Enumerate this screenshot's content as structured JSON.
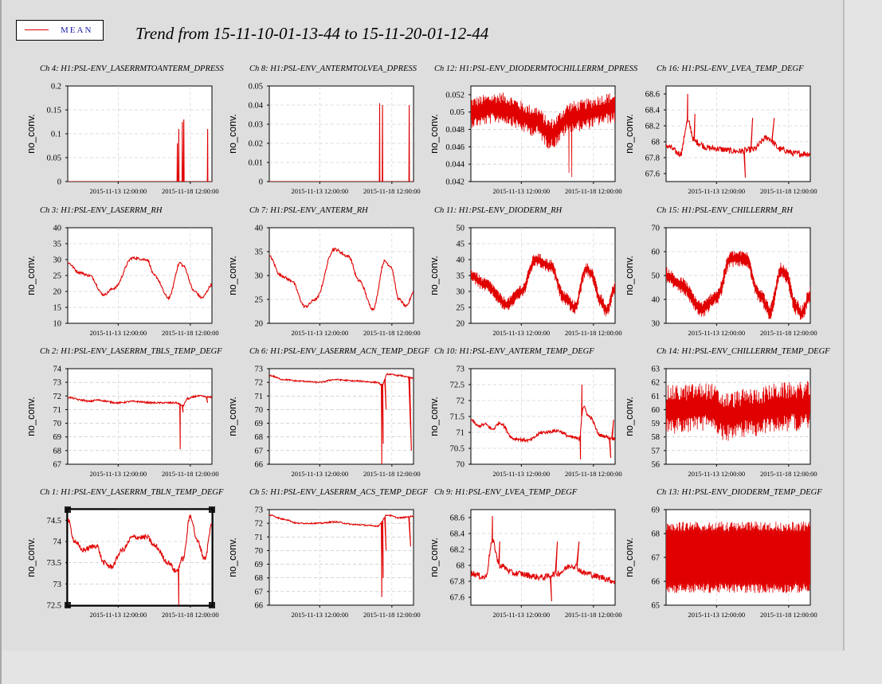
{
  "title": "Trend from 15-11-10-01-13-44 to 15-11-20-01-12-44",
  "legend": {
    "label": "MEAN",
    "color": "#e00000"
  },
  "series_color": "#e00000",
  "chart_data": [
    {
      "title": "Ch 4: H1:PSL-ENV_LASERRMTOANTERM_DPRESS",
      "type": "line",
      "ylabel": "no_conv.",
      "ylim": [
        0,
        0.2
      ],
      "yticks": [
        "0",
        "0.05",
        "0.1",
        "0.15",
        "0.2"
      ],
      "xticks": [
        "2015-11-13 12:00:00",
        "2015-11-18 12:00:00"
      ],
      "pattern": "spikes",
      "base": 0,
      "noise": 0,
      "spikes": [
        [
          0.76,
          0.08
        ],
        [
          0.77,
          0.11
        ],
        [
          0.795,
          0.125
        ],
        [
          0.805,
          0.13
        ],
        [
          0.97,
          0.11
        ]
      ]
    },
    {
      "title": "Ch 8: H1:PSL-ENV_ANTERMTOLVEA_DPRESS",
      "type": "line",
      "ylabel": "no_conv.",
      "ylim": [
        0,
        0.05
      ],
      "yticks": [
        "0",
        "0.01",
        "0.02",
        "0.03",
        "0.04",
        "0.05"
      ],
      "xticks": [
        "2015-11-13 12:00:00",
        "2015-11-18 12:00:00"
      ],
      "pattern": "spikes",
      "base": 0,
      "noise": 0,
      "spikes": [
        [
          0.765,
          0.041
        ],
        [
          0.785,
          0.04
        ],
        [
          0.97,
          0.04
        ]
      ]
    },
    {
      "title": "Ch 12: H1:PSL-ENV_DIODERMTOCHILLERRM_DPRESS",
      "type": "line",
      "ylabel": "no_conv.",
      "ylim": [
        0.042,
        0.053
      ],
      "yticks": [
        "0.042",
        "0.044",
        "0.046",
        "0.048",
        "0.05",
        "0.052"
      ],
      "xticks": [
        "2015-11-13 12:00:00",
        "2015-11-18 12:00:00"
      ],
      "pattern": "noisy",
      "keys": [
        [
          0,
          0.05
        ],
        [
          0.2,
          0.0505
        ],
        [
          0.45,
          0.049
        ],
        [
          0.55,
          0.0475
        ],
        [
          0.7,
          0.0495
        ],
        [
          1,
          0.0505
        ]
      ],
      "noise": 0.0018,
      "spikes": [
        [
          0.7,
          0.0425
        ],
        [
          0.68,
          0.043
        ]
      ]
    },
    {
      "title": "Ch 16: H1:PSL-ENV_LVEA_TEMP_DEGF",
      "type": "line",
      "ylabel": "no_conv.",
      "ylim": [
        67.5,
        68.7
      ],
      "yticks": [
        "67.6",
        "67.8",
        "68",
        "68.2",
        "68.4",
        "68.6"
      ],
      "xticks": [
        "2015-11-13 12:00:00",
        "2015-11-18 12:00:00"
      ],
      "pattern": "wiggly",
      "keys": [
        [
          0,
          67.95
        ],
        [
          0.1,
          67.85
        ],
        [
          0.15,
          68.25
        ],
        [
          0.2,
          68.0
        ],
        [
          0.3,
          67.92
        ],
        [
          0.5,
          67.88
        ],
        [
          0.6,
          67.9
        ],
        [
          0.7,
          68.05
        ],
        [
          0.8,
          67.9
        ],
        [
          0.9,
          67.85
        ],
        [
          1,
          67.85
        ]
      ],
      "noise": 0.04,
      "spikes": [
        [
          0.15,
          68.6
        ],
        [
          0.2,
          68.35
        ],
        [
          0.55,
          67.55
        ],
        [
          0.6,
          68.3
        ],
        [
          0.75,
          68.3
        ]
      ]
    },
    {
      "title": "Ch 3: H1:PSL-ENV_LASERRM_RH",
      "type": "line",
      "ylabel": "no_conv.",
      "ylim": [
        10,
        40
      ],
      "yticks": [
        "10",
        "15",
        "20",
        "25",
        "30",
        "35",
        "40"
      ],
      "xticks": [
        "2015-11-13 12:00:00",
        "2015-11-18 12:00:00"
      ],
      "pattern": "smooth",
      "keys": [
        [
          0,
          29
        ],
        [
          0.08,
          26
        ],
        [
          0.15,
          25
        ],
        [
          0.25,
          19
        ],
        [
          0.32,
          21
        ],
        [
          0.45,
          30.5
        ],
        [
          0.55,
          30
        ],
        [
          0.6,
          25
        ],
        [
          0.7,
          18
        ],
        [
          0.78,
          29
        ],
        [
          0.8,
          28
        ],
        [
          0.88,
          20
        ],
        [
          0.93,
          18
        ],
        [
          1,
          22
        ]
      ],
      "noise": 0.4,
      "spikes": []
    },
    {
      "title": "Ch 7: H1:PSL-ENV_ANTERM_RH",
      "type": "line",
      "ylabel": "no_conv.",
      "ylim": [
        20,
        40
      ],
      "yticks": [
        "20",
        "25",
        "30",
        "35",
        "40"
      ],
      "xticks": [
        "2015-11-13 12:00:00",
        "2015-11-18 12:00:00"
      ],
      "pattern": "smooth",
      "keys": [
        [
          0,
          34
        ],
        [
          0.08,
          30
        ],
        [
          0.15,
          29
        ],
        [
          0.25,
          23.5
        ],
        [
          0.32,
          25
        ],
        [
          0.45,
          35.5
        ],
        [
          0.55,
          34
        ],
        [
          0.62,
          29
        ],
        [
          0.72,
          23
        ],
        [
          0.8,
          33
        ],
        [
          0.84,
          32
        ],
        [
          0.9,
          25
        ],
        [
          0.95,
          23.5
        ],
        [
          1,
          26.5
        ]
      ],
      "noise": 0.3,
      "spikes": []
    },
    {
      "title": "Ch 11: H1:PSL-ENV_DIODERM_RH",
      "type": "line",
      "ylabel": "no_conv.",
      "ylim": [
        20,
        50
      ],
      "yticks": [
        "20",
        "25",
        "30",
        "35",
        "40",
        "45",
        "50"
      ],
      "xticks": [
        "2015-11-13 12:00:00",
        "2015-11-18 12:00:00"
      ],
      "pattern": "noisy",
      "keys": [
        [
          0,
          35
        ],
        [
          0.1,
          32
        ],
        [
          0.25,
          26
        ],
        [
          0.35,
          30
        ],
        [
          0.45,
          40
        ],
        [
          0.55,
          38
        ],
        [
          0.65,
          28
        ],
        [
          0.72,
          25
        ],
        [
          0.8,
          37
        ],
        [
          0.83,
          36
        ],
        [
          0.9,
          27
        ],
        [
          0.94,
          24
        ],
        [
          1,
          31
        ]
      ],
      "noise": 2.2,
      "spikes": []
    },
    {
      "title": "Ch 15: H1:PSL-ENV_CHILLERRM_RH",
      "type": "line",
      "ylabel": "no_conv.",
      "ylim": [
        30,
        70
      ],
      "yticks": [
        "30",
        "40",
        "50",
        "60",
        "70"
      ],
      "xticks": [
        "2015-11-13 12:00:00",
        "2015-11-18 12:00:00"
      ],
      "pattern": "noisy",
      "keys": [
        [
          0,
          50
        ],
        [
          0.1,
          46
        ],
        [
          0.25,
          36
        ],
        [
          0.35,
          41
        ],
        [
          0.45,
          57
        ],
        [
          0.55,
          57
        ],
        [
          0.65,
          42
        ],
        [
          0.72,
          35
        ],
        [
          0.8,
          52
        ],
        [
          0.83,
          50
        ],
        [
          0.9,
          37
        ],
        [
          0.94,
          34
        ],
        [
          1,
          42
        ]
      ],
      "noise": 3.5,
      "spikes": []
    },
    {
      "title": "Ch 2: H1:PSL-ENV_LASERRM_TBLS_TEMP_DEGF",
      "type": "line",
      "ylabel": "no_conv.",
      "ylim": [
        67,
        74
      ],
      "yticks": [
        "67",
        "68",
        "69",
        "70",
        "71",
        "72",
        "73",
        "74"
      ],
      "xticks": [
        "2015-11-13 12:00:00",
        "2015-11-18 12:00:00"
      ],
      "pattern": "wiggly",
      "keys": [
        [
          0,
          71.9
        ],
        [
          0.1,
          71.7
        ],
        [
          0.15,
          71.6
        ],
        [
          0.2,
          71.7
        ],
        [
          0.35,
          71.5
        ],
        [
          0.45,
          71.6
        ],
        [
          0.6,
          71.5
        ],
        [
          0.75,
          71.5
        ],
        [
          0.8,
          71.3
        ],
        [
          0.83,
          71.8
        ],
        [
          0.9,
          72.0
        ],
        [
          1,
          71.9
        ]
      ],
      "noise": 0.06,
      "spikes": [
        [
          0.78,
          68.1
        ],
        [
          0.8,
          70.8
        ],
        [
          0.97,
          71.5
        ]
      ]
    },
    {
      "title": "Ch 6: H1:PSL-ENV_LASERRM_ACN_TEMP_DEGF",
      "type": "line",
      "ylabel": "no_conv.",
      "ylim": [
        66,
        73
      ],
      "yticks": [
        "66",
        "67",
        "68",
        "69",
        "70",
        "71",
        "72",
        "73"
      ],
      "xticks": [
        "2015-11-13 12:00:00",
        "2015-11-18 12:00:00"
      ],
      "pattern": "wiggly",
      "keys": [
        [
          0,
          72.5
        ],
        [
          0.1,
          72.2
        ],
        [
          0.2,
          72.1
        ],
        [
          0.35,
          72.0
        ],
        [
          0.45,
          72.2
        ],
        [
          0.6,
          72.1
        ],
        [
          0.75,
          72.0
        ],
        [
          0.78,
          71.8
        ],
        [
          0.82,
          72.6
        ],
        [
          0.9,
          72.5
        ],
        [
          1,
          72.3
        ]
      ],
      "noise": 0.05,
      "spikes": [
        [
          0.78,
          66.0
        ],
        [
          0.79,
          67.5
        ],
        [
          0.81,
          70.0
        ],
        [
          0.98,
          68.5
        ],
        [
          0.985,
          67.0
        ]
      ]
    },
    {
      "title": "Ch 10: H1:PSL-ENV_ANTERM_TEMP_DEGF",
      "type": "line",
      "ylabel": "no_conv.",
      "ylim": [
        70,
        73
      ],
      "yticks": [
        "70",
        "70.5",
        "71",
        "71.5",
        "72",
        "72.5",
        "73"
      ],
      "xticks": [
        "2015-11-13 12:00:00",
        "2015-11-18 12:00:00"
      ],
      "pattern": "wiggly",
      "keys": [
        [
          0,
          71.4
        ],
        [
          0.05,
          71.2
        ],
        [
          0.1,
          71.25
        ],
        [
          0.15,
          71.1
        ],
        [
          0.2,
          71.3
        ],
        [
          0.3,
          70.8
        ],
        [
          0.4,
          70.75
        ],
        [
          0.5,
          71.0
        ],
        [
          0.6,
          71.05
        ],
        [
          0.7,
          70.85
        ],
        [
          0.75,
          70.8
        ],
        [
          0.78,
          71.8
        ],
        [
          0.82,
          71.5
        ],
        [
          0.9,
          70.9
        ],
        [
          1,
          70.8
        ]
      ],
      "noise": 0.05,
      "spikes": [
        [
          0.77,
          72.5
        ],
        [
          0.76,
          70.15
        ],
        [
          0.97,
          70.2
        ],
        [
          0.99,
          71.4
        ]
      ]
    },
    {
      "title": "Ch 14: H1:PSL-ENV_CHILLERRM_TEMP_DEGF",
      "type": "line",
      "ylabel": "no_conv.",
      "ylim": [
        56,
        63
      ],
      "yticks": [
        "56",
        "57",
        "58",
        "59",
        "60",
        "61",
        "62",
        "63"
      ],
      "xticks": [
        "2015-11-13 12:00:00",
        "2015-11-18 12:00:00"
      ],
      "pattern": "noisy",
      "keys": [
        [
          0,
          60.0
        ],
        [
          0.3,
          60.2
        ],
        [
          0.4,
          59.5
        ],
        [
          0.6,
          59.8
        ],
        [
          0.8,
          60.2
        ],
        [
          1,
          60.3
        ]
      ],
      "noise": 1.8,
      "spikes": []
    },
    {
      "title": "Ch 1: H1:PSL-ENV_LASERRM_TBLN_TEMP_DEGF",
      "type": "line",
      "ylabel": "no_conv.",
      "ylim": [
        72.5,
        74.75
      ],
      "yticks": [
        "72.5",
        "73",
        "73.5",
        "74",
        "74.5"
      ],
      "xticks": [
        "2015-11-13 12:00:00",
        "2015-11-18 12:00:00"
      ],
      "pattern": "wiggly",
      "keys": [
        [
          0,
          74.5
        ],
        [
          0.05,
          74.0
        ],
        [
          0.1,
          73.8
        ],
        [
          0.2,
          73.9
        ],
        [
          0.25,
          73.5
        ],
        [
          0.3,
          73.4
        ],
        [
          0.38,
          73.8
        ],
        [
          0.45,
          74.1
        ],
        [
          0.55,
          74.1
        ],
        [
          0.6,
          73.9
        ],
        [
          0.7,
          73.5
        ],
        [
          0.75,
          73.3
        ],
        [
          0.8,
          73.6
        ],
        [
          0.85,
          74.6
        ],
        [
          0.9,
          74.0
        ],
        [
          0.95,
          73.6
        ],
        [
          1,
          74.4
        ]
      ],
      "noise": 0.06,
      "spikes": [
        [
          0.77,
          72.5
        ],
        [
          0.76,
          73.3
        ]
      ]
    },
    {
      "title": "Ch 5: H1:PSL-ENV_LASERRM_ACS_TEMP_DEGF",
      "type": "line",
      "ylabel": "no_conv.",
      "ylim": [
        66,
        73
      ],
      "yticks": [
        "66",
        "67",
        "68",
        "69",
        "70",
        "71",
        "72",
        "73"
      ],
      "xticks": [
        "2015-11-13 12:00:00",
        "2015-11-18 12:00:00"
      ],
      "pattern": "wiggly",
      "keys": [
        [
          0,
          72.6
        ],
        [
          0.1,
          72.3
        ],
        [
          0.2,
          72.0
        ],
        [
          0.35,
          72.0
        ],
        [
          0.45,
          72.1
        ],
        [
          0.6,
          71.9
        ],
        [
          0.75,
          71.8
        ],
        [
          0.82,
          72.6
        ],
        [
          0.9,
          72.4
        ],
        [
          1,
          72.5
        ]
      ],
      "noise": 0.05,
      "spikes": [
        [
          0.78,
          66.6
        ],
        [
          0.79,
          68.0
        ],
        [
          0.81,
          70.0
        ],
        [
          0.98,
          70.3
        ]
      ]
    },
    {
      "title": "Ch 9: H1:PSL-ENV_LVEA_TEMP_DEGF",
      "type": "line",
      "ylabel": "no_conv.",
      "ylim": [
        67.5,
        68.7
      ],
      "yticks": [
        "67.6",
        "67.8",
        "68",
        "68.2",
        "68.4",
        "68.6"
      ],
      "xticks": [
        "2015-11-13 12:00:00",
        "2015-11-18 12:00:00"
      ],
      "pattern": "wiggly",
      "keys": [
        [
          0,
          67.9
        ],
        [
          0.1,
          67.85
        ],
        [
          0.15,
          68.3
        ],
        [
          0.2,
          68.0
        ],
        [
          0.3,
          67.9
        ],
        [
          0.5,
          67.85
        ],
        [
          0.6,
          67.9
        ],
        [
          0.7,
          68.0
        ],
        [
          0.8,
          67.9
        ],
        [
          0.9,
          67.85
        ],
        [
          1,
          67.8
        ]
      ],
      "noise": 0.04,
      "spikes": [
        [
          0.15,
          68.62
        ],
        [
          0.2,
          68.3
        ],
        [
          0.56,
          67.55
        ],
        [
          0.6,
          68.3
        ],
        [
          0.75,
          68.3
        ]
      ]
    },
    {
      "title": "Ch 13: H1:PSL-ENV_DIODERM_TEMP_DEGF",
      "type": "line",
      "ylabel": "no_conv.",
      "ylim": [
        65,
        69
      ],
      "yticks": [
        "65",
        "66",
        "67",
        "68",
        "69"
      ],
      "xticks": [
        "2015-11-13 12:00:00",
        "2015-11-18 12:00:00"
      ],
      "pattern": "band",
      "keys": [
        [
          0,
          67.0
        ],
        [
          1,
          67.0
        ]
      ],
      "band": [
        65.5,
        68.5
      ],
      "noise": 0,
      "spikes": []
    }
  ]
}
